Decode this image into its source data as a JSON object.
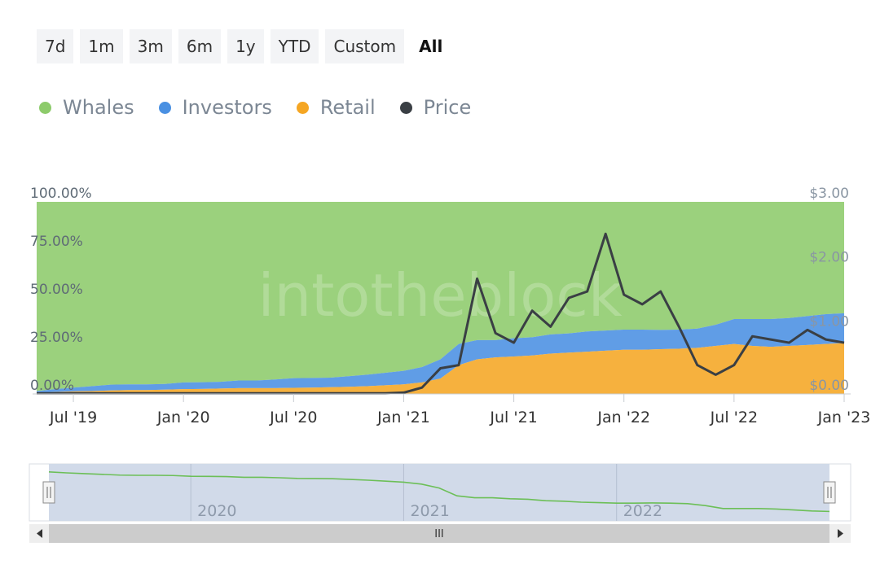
{
  "range_buttons": [
    {
      "label": "7d",
      "active": false
    },
    {
      "label": "1m",
      "active": false
    },
    {
      "label": "3m",
      "active": false
    },
    {
      "label": "6m",
      "active": false
    },
    {
      "label": "1y",
      "active": false
    },
    {
      "label": "YTD",
      "active": false
    },
    {
      "label": "Custom",
      "active": false
    },
    {
      "label": "All",
      "active": true
    }
  ],
  "legend": [
    {
      "label": "Whales",
      "color": "#8dcb6b",
      "icon": "circle-icon"
    },
    {
      "label": "Investors",
      "color": "#4a90e2",
      "icon": "circle-icon"
    },
    {
      "label": "Retail",
      "color": "#f5a623",
      "icon": "circle-icon"
    },
    {
      "label": "Price",
      "color": "#3a3f44",
      "icon": "circle-icon"
    }
  ],
  "watermark": "intotheblock",
  "chart_data": {
    "type": "area",
    "x": [
      "2019-05",
      "2019-06",
      "2019-07",
      "2019-08",
      "2019-09",
      "2019-10",
      "2019-11",
      "2019-12",
      "2020-01",
      "2020-02",
      "2020-03",
      "2020-04",
      "2020-05",
      "2020-06",
      "2020-07",
      "2020-08",
      "2020-09",
      "2020-10",
      "2020-11",
      "2020-12",
      "2021-01",
      "2021-02",
      "2021-03",
      "2021-04",
      "2021-05",
      "2021-06",
      "2021-07",
      "2021-08",
      "2021-09",
      "2021-10",
      "2021-11",
      "2021-12",
      "2022-01",
      "2022-02",
      "2022-03",
      "2022-04",
      "2022-05",
      "2022-06",
      "2022-07",
      "2022-08",
      "2022-09",
      "2022-10",
      "2022-11",
      "2022-12",
      "2023-01"
    ],
    "series": [
      {
        "name": "Retail",
        "unit": "%",
        "color": "#f5a623",
        "values": [
          0.5,
          1,
          1.3,
          1.5,
          1.8,
          2,
          2,
          2.2,
          2.5,
          2.6,
          2.8,
          3,
          3,
          3,
          3.2,
          3.3,
          3.5,
          3.7,
          4,
          4.5,
          5,
          6,
          8,
          15,
          18,
          19,
          19.5,
          20,
          21,
          21.5,
          22,
          22.5,
          23,
          23,
          23.3,
          23.5,
          24,
          25,
          26,
          25,
          24.5,
          25,
          25.5,
          26,
          26.5
        ]
      },
      {
        "name": "Investors",
        "unit": "%",
        "color": "#4a90e2",
        "values": [
          1,
          1.5,
          2,
          2.5,
          3,
          3,
          3,
          3,
          3.5,
          3.5,
          3.5,
          4,
          4,
          4.5,
          5,
          5,
          5,
          5.5,
          6,
          6.5,
          7,
          8,
          10,
          11,
          10,
          9,
          9.5,
          9.5,
          10,
          10,
          10.5,
          10.5,
          10.5,
          10.5,
          10,
          10,
          10,
          11,
          13,
          14,
          14.5,
          14.5,
          15,
          15.5,
          15.5
        ]
      },
      {
        "name": "Whales",
        "unit": "%",
        "color": "#8dcb6b",
        "values": [
          98.5,
          97.5,
          96.7,
          96,
          95.2,
          95,
          95,
          94.8,
          94,
          93.9,
          93.7,
          93,
          93,
          92.5,
          91.8,
          91.7,
          91.5,
          90.8,
          90,
          89,
          88,
          86,
          82,
          74,
          72,
          72,
          71,
          70.5,
          69,
          68.5,
          67.5,
          67,
          66.5,
          66.5,
          66.7,
          66.5,
          66,
          64,
          61,
          61,
          61,
          60.5,
          59.5,
          58.5,
          58
        ]
      },
      {
        "name": "Price",
        "unit": "$",
        "color": "#3a3f44",
        "values": [
          0.01,
          0.01,
          0.01,
          0.01,
          0.01,
          0.01,
          0.01,
          0.01,
          0.01,
          0.01,
          0.01,
          0.01,
          0.01,
          0.01,
          0.01,
          0.01,
          0.01,
          0.01,
          0.01,
          0.01,
          0.02,
          0.1,
          0.4,
          0.45,
          1.8,
          0.95,
          0.8,
          1.3,
          1.05,
          1.5,
          1.6,
          2.5,
          1.55,
          1.4,
          1.6,
          1.05,
          0.45,
          0.3,
          0.45,
          0.9,
          0.85,
          0.8,
          1.0,
          0.85,
          0.8
        ]
      }
    ],
    "left_axis": {
      "ticks": [
        "0.00%",
        "25.00%",
        "50.00%",
        "75.00%",
        "100.00%"
      ],
      "range": [
        0,
        100
      ]
    },
    "right_axis": {
      "ticks": [
        "$0.00",
        "$1.00",
        "$2.00",
        "$3.00"
      ],
      "range": [
        0,
        3
      ]
    },
    "x_tick_labels": [
      {
        "label": "Jul '19",
        "date": "2019-07"
      },
      {
        "label": "Jan '20",
        "date": "2020-01"
      },
      {
        "label": "Jul '20",
        "date": "2020-07"
      },
      {
        "label": "Jan '21",
        "date": "2021-01"
      },
      {
        "label": "Jul '21",
        "date": "2021-07"
      },
      {
        "label": "Jan '22",
        "date": "2022-01"
      },
      {
        "label": "Jul '22",
        "date": "2022-07"
      },
      {
        "label": "Jan '23",
        "date": "2023-01"
      }
    ],
    "navigator": {
      "year_labels": [
        {
          "label": "2020",
          "date": "2020-01"
        },
        {
          "label": "2021",
          "date": "2021-01"
        },
        {
          "label": "2022",
          "date": "2022-01"
        }
      ],
      "series_name": "Whales",
      "scroll_label": "III"
    },
    "legend_position": "top-left"
  }
}
